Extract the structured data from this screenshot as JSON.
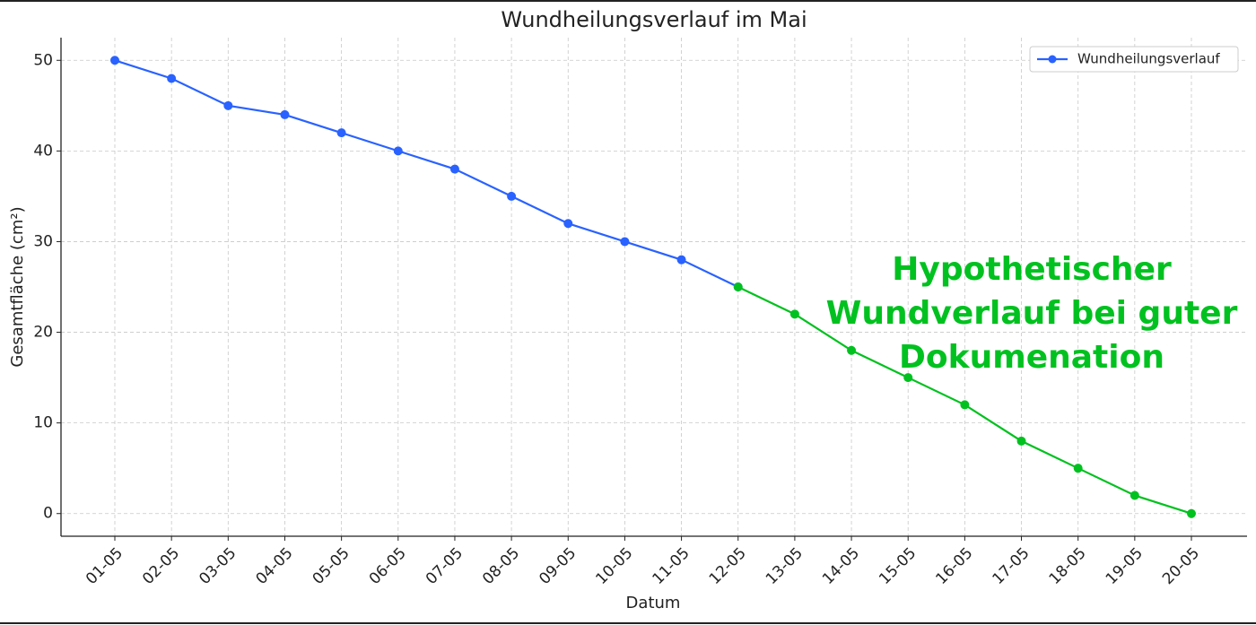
{
  "chart_data": {
    "type": "line",
    "title": "Wundheilungsverlauf im Mai",
    "x_label": "Datum",
    "y_label": "Gesamtfläche (cm²)",
    "categories": [
      "01-05",
      "02-05",
      "03-05",
      "04-05",
      "05-05",
      "06-05",
      "07-05",
      "08-05",
      "09-05",
      "10-05",
      "11-05",
      "12-05",
      "13-05",
      "14-05",
      "15-05",
      "16-05",
      "17-05",
      "18-05",
      "19-05",
      "20-05"
    ],
    "series": [
      {
        "name": "Wundheilungsverlauf",
        "color": "#2962ff",
        "values": [
          50,
          48,
          45,
          44,
          42,
          40,
          38,
          35,
          32,
          30,
          28,
          25,
          null,
          null,
          null,
          null,
          null,
          null,
          null,
          null
        ]
      },
      {
        "color": "#00c11f",
        "values": [
          null,
          null,
          null,
          null,
          null,
          null,
          null,
          null,
          null,
          null,
          null,
          25,
          22,
          18,
          15,
          12,
          8,
          5,
          2,
          0
        ]
      }
    ],
    "annotation": {
      "lines": [
        "Hypothetischer",
        "Wundverlauf bei guter",
        "Dokumenation"
      ],
      "color": "#00c11f"
    },
    "ylim": [
      -2.5,
      52.5
    ],
    "yticks": [
      0,
      10,
      20,
      30,
      40,
      50
    ],
    "grid": true,
    "legend": "upper right"
  }
}
